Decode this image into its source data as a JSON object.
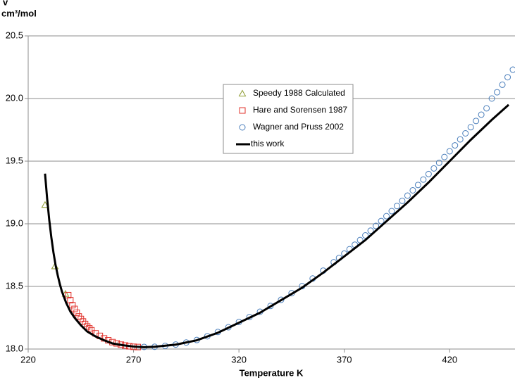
{
  "chart_data": {
    "type": "scatter",
    "y_label_symbol": "v",
    "y_label": "cm³/mol",
    "x_label": "Temperature K",
    "xlim": [
      220,
      451
    ],
    "ylim": [
      18,
      20.5
    ],
    "xticks": [
      220,
      270,
      320,
      370,
      420
    ],
    "yticks": [
      {
        "value": 18,
        "label": "18.0"
      },
      18.5,
      {
        "value": 19,
        "label": "19.0"
      },
      19.5,
      {
        "value": 20,
        "label": "20.0"
      },
      20.5
    ],
    "grid": true,
    "legend": "upper center",
    "series": [
      {
        "name": "Speedy 1988 Calculated",
        "color": "#8c9a2e",
        "marker": "triangle",
        "x": [
          228,
          232.7,
          237.7
        ],
        "values": [
          19.15,
          18.66,
          18.44
        ]
      },
      {
        "name": "Hare and Sorensen 1987",
        "color": "#e0302a",
        "marker": "square",
        "x": [
          239,
          240,
          241,
          242,
          243,
          244,
          245,
          246,
          247,
          248,
          249,
          250,
          252,
          254,
          256,
          258,
          260,
          262,
          264,
          266,
          268,
          270,
          272
        ],
        "values": [
          18.43,
          18.39,
          18.35,
          18.32,
          18.29,
          18.26,
          18.24,
          18.22,
          18.2,
          18.18,
          18.165,
          18.15,
          18.125,
          18.105,
          18.085,
          18.07,
          18.055,
          18.045,
          18.035,
          18.028,
          18.022,
          18.018,
          18.016
        ]
      },
      {
        "name": "Wagner and Pruss 2002",
        "color": "#4a7ebb",
        "marker": "circle",
        "x": [
          275,
          280,
          285,
          290,
          295,
          300,
          305,
          310,
          315,
          320,
          325,
          330,
          335,
          340,
          345,
          350,
          355,
          360,
          365,
          367.5,
          370,
          372.5,
          375,
          377.5,
          380,
          382.5,
          385,
          387.5,
          390,
          392.5,
          395,
          397.5,
          400,
          402.5,
          405,
          407.5,
          410,
          412.5,
          415,
          417.5,
          420,
          422.5,
          425,
          427.5,
          430,
          432.5,
          435,
          437.5,
          440,
          442.5,
          445,
          447.5,
          450
        ],
        "values": [
          18.017,
          18.018,
          18.025,
          18.036,
          18.052,
          18.072,
          18.102,
          18.136,
          18.174,
          18.216,
          18.255,
          18.298,
          18.344,
          18.393,
          18.446,
          18.502,
          18.563,
          18.626,
          18.693,
          18.727,
          18.762,
          18.797,
          18.833,
          18.87,
          18.907,
          18.945,
          18.983,
          19.022,
          19.061,
          19.101,
          19.142,
          19.183,
          19.225,
          19.267,
          19.31,
          19.353,
          19.397,
          19.442,
          19.487,
          19.533,
          19.579,
          19.626,
          19.674,
          19.722,
          19.771,
          19.821,
          19.871,
          19.922,
          20.0,
          20.05,
          20.11,
          20.17,
          20.23
        ]
      },
      {
        "name": "this work",
        "color": "#000000",
        "marker": "line",
        "x": [
          228,
          229,
          230,
          231,
          232,
          233,
          234,
          235,
          236,
          238,
          240,
          242,
          245,
          248,
          252,
          256,
          260,
          265,
          270,
          275,
          280,
          290,
          300,
          310,
          320,
          330,
          340,
          350,
          360,
          370,
          380,
          390,
          400,
          410,
          420,
          430,
          440,
          448
        ],
        "values": [
          19.4,
          19.2,
          19.03,
          18.89,
          18.77,
          18.67,
          18.59,
          18.52,
          18.46,
          18.37,
          18.3,
          18.25,
          18.19,
          18.14,
          18.1,
          18.07,
          18.045,
          18.03,
          18.02,
          18.015,
          18.018,
          18.035,
          18.07,
          18.13,
          18.21,
          18.29,
          18.39,
          18.49,
          18.61,
          18.74,
          18.87,
          19.02,
          19.17,
          19.33,
          19.5,
          19.67,
          19.83,
          19.95
        ]
      }
    ]
  }
}
